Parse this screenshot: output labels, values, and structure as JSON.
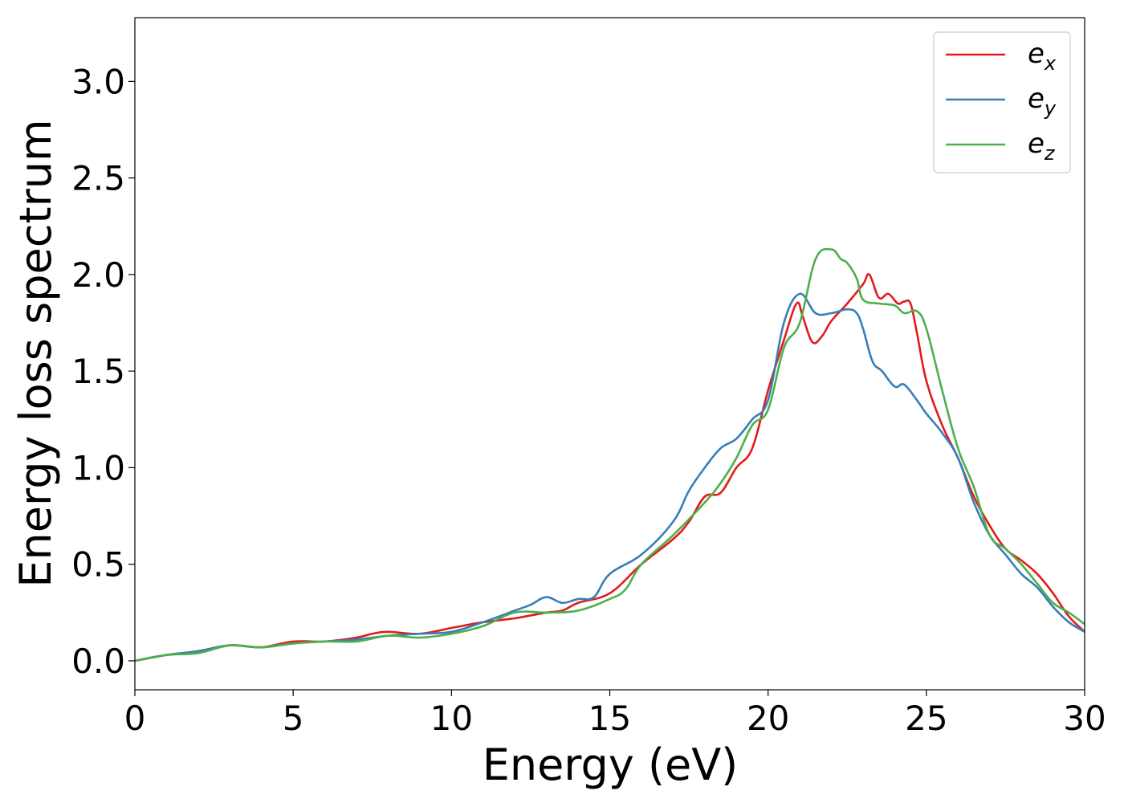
{
  "chart_data": {
    "type": "line",
    "title": "",
    "xlabel": "Energy (eV)",
    "ylabel": "Energy loss spectrum",
    "xlim": [
      0,
      30
    ],
    "ylim": [
      -0.15,
      3.33
    ],
    "xticks": [
      0,
      5,
      10,
      15,
      20,
      25,
      30
    ],
    "xtick_labels": [
      "0",
      "5",
      "10",
      "15",
      "20",
      "25",
      "30"
    ],
    "yticks": [
      0.0,
      0.5,
      1.0,
      1.5,
      2.0,
      2.5,
      3.0
    ],
    "ytick_labels": [
      "0.0",
      "0.5",
      "1.0",
      "1.5",
      "2.0",
      "2.5",
      "3.0"
    ],
    "grid": false,
    "legend_position": "top-right",
    "series": [
      {
        "name": "e_x",
        "label_main": "e",
        "label_sub": "x",
        "color": "#e41a1c",
        "x": [
          0,
          1,
          2,
          3,
          4,
          5,
          6,
          7,
          7.5,
          8,
          9,
          10,
          11,
          12,
          13,
          13.5,
          14,
          15,
          16,
          17,
          17.5,
          18,
          18.5,
          19,
          19.5,
          20,
          20.5,
          20.9,
          21.1,
          21.4,
          21.7,
          22,
          22.5,
          23,
          23.2,
          23.5,
          23.8,
          24.1,
          24.3,
          24.5,
          24.7,
          25,
          25.5,
          26,
          26.5,
          27,
          27.5,
          28,
          28.5,
          29,
          29.5,
          30
        ],
        "y": [
          0,
          0.03,
          0.05,
          0.08,
          0.07,
          0.1,
          0.1,
          0.12,
          0.14,
          0.15,
          0.14,
          0.17,
          0.2,
          0.22,
          0.25,
          0.26,
          0.3,
          0.35,
          0.5,
          0.63,
          0.72,
          0.85,
          0.87,
          1.0,
          1.1,
          1.4,
          1.66,
          1.85,
          1.78,
          1.65,
          1.68,
          1.76,
          1.85,
          1.95,
          2.0,
          1.88,
          1.9,
          1.85,
          1.86,
          1.85,
          1.7,
          1.45,
          1.22,
          1.05,
          0.85,
          0.7,
          0.58,
          0.52,
          0.45,
          0.35,
          0.23,
          0.15
        ]
      },
      {
        "name": "e_y",
        "label_main": "e",
        "label_sub": "y",
        "color": "#377eb8",
        "x": [
          0,
          1,
          2,
          3,
          4,
          5,
          6,
          7,
          8,
          9,
          10,
          11,
          12,
          12.5,
          13,
          13.5,
          14,
          14.5,
          15,
          16,
          17,
          17.5,
          18,
          18.5,
          19,
          19.5,
          20,
          20.5,
          21,
          21.5,
          22,
          22.5,
          22.8,
          23,
          23.3,
          23.6,
          24,
          24.3,
          24.7,
          25,
          25.5,
          26,
          26.5,
          27,
          27.5,
          28,
          28.5,
          29,
          29.5,
          30
        ],
        "y": [
          0,
          0.03,
          0.05,
          0.08,
          0.07,
          0.09,
          0.1,
          0.11,
          0.13,
          0.14,
          0.15,
          0.2,
          0.26,
          0.29,
          0.33,
          0.3,
          0.32,
          0.33,
          0.45,
          0.55,
          0.72,
          0.88,
          1.0,
          1.1,
          1.15,
          1.25,
          1.35,
          1.75,
          1.9,
          1.8,
          1.8,
          1.82,
          1.8,
          1.72,
          1.55,
          1.5,
          1.42,
          1.43,
          1.35,
          1.28,
          1.18,
          1.05,
          0.82,
          0.65,
          0.55,
          0.45,
          0.38,
          0.28,
          0.2,
          0.15
        ]
      },
      {
        "name": "e_z",
        "label_main": "e",
        "label_sub": "z",
        "color": "#4daf4a",
        "x": [
          0,
          1,
          2,
          3,
          4,
          5,
          6,
          7,
          8,
          9,
          10,
          11,
          12,
          13,
          14,
          15,
          15.5,
          16,
          17,
          18,
          18.5,
          19,
          19.5,
          20,
          20.5,
          21,
          21.5,
          22,
          22.3,
          22.5,
          22.8,
          23,
          23.5,
          24,
          24.3,
          24.7,
          25,
          25.5,
          26,
          26.5,
          27,
          27.5,
          28,
          28.5,
          29,
          29.5,
          30
        ],
        "y": [
          0,
          0.03,
          0.04,
          0.08,
          0.07,
          0.09,
          0.1,
          0.1,
          0.13,
          0.12,
          0.14,
          0.18,
          0.25,
          0.25,
          0.26,
          0.32,
          0.37,
          0.5,
          0.65,
          0.82,
          0.92,
          1.05,
          1.22,
          1.3,
          1.62,
          1.75,
          2.08,
          2.13,
          2.08,
          2.06,
          1.98,
          1.87,
          1.85,
          1.84,
          1.8,
          1.81,
          1.72,
          1.4,
          1.1,
          0.9,
          0.65,
          0.58,
          0.5,
          0.4,
          0.3,
          0.25,
          0.19
        ]
      }
    ]
  }
}
